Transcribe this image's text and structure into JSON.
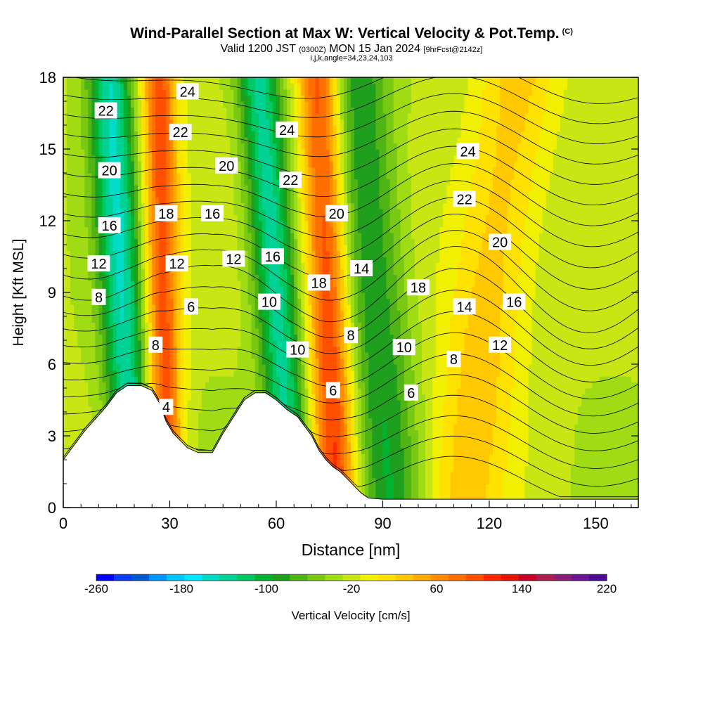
{
  "header": {
    "title": "Wind-Parallel Section at Max W: Vertical Velocity & Pot.Temp.",
    "copyright": "(C)",
    "valid_prefix": "Valid 1200 JST",
    "valid_utc": "(0300Z)",
    "valid_date": "MON 15 Jan 2024",
    "forecast": "[9hrFcst@2142z]",
    "indices": "i,j,k,angle=34,23,24,103"
  },
  "chart_data": {
    "type": "heatmap",
    "xlabel": "Distance [nm]",
    "ylabel": "Height [Kft MSL]",
    "xlim": [
      0,
      162
    ],
    "ylim": [
      0,
      18
    ],
    "x_ticks": [
      0,
      30,
      60,
      90,
      120,
      150
    ],
    "y_ticks": [
      0,
      3,
      6,
      9,
      12,
      15,
      18
    ],
    "colorbar": {
      "label": "Vertical Velocity [cm/s]",
      "min": -260,
      "max": 220,
      "step": 20,
      "tick_labels": [
        "-260",
        "-180",
        "-100",
        "-20",
        "60",
        "140",
        "220"
      ],
      "colors": [
        "#0000ff",
        "#0a3cf5",
        "#005ad2",
        "#0096ff",
        "#00c8ff",
        "#00e6ff",
        "#00dcc8",
        "#00d296",
        "#00c864",
        "#00b432",
        "#1ea01e",
        "#50b414",
        "#78c814",
        "#a0dc14",
        "#c8e614",
        "#f0f000",
        "#ffe100",
        "#ffc800",
        "#ffaa00",
        "#ff8c00",
        "#ff6e00",
        "#ff5000",
        "#ff2800",
        "#e61400",
        "#c80028",
        "#aa1e50",
        "#8c1e78",
        "#6e1496",
        "#500a96"
      ]
    },
    "terrain_height_kft": [
      [
        0,
        2
      ],
      [
        3,
        2.6
      ],
      [
        6,
        3.2
      ],
      [
        9,
        3.7
      ],
      [
        12,
        4.2
      ],
      [
        15,
        4.8
      ],
      [
        18,
        5.1
      ],
      [
        22,
        5.1
      ],
      [
        25,
        4.9
      ],
      [
        27,
        4.4
      ],
      [
        29,
        3.6
      ],
      [
        31,
        3.1
      ],
      [
        33,
        2.8
      ],
      [
        35,
        2.5
      ],
      [
        38,
        2.3
      ],
      [
        42,
        2.3
      ],
      [
        45,
        3.1
      ],
      [
        48,
        3.8
      ],
      [
        51,
        4.5
      ],
      [
        54,
        4.8
      ],
      [
        57,
        4.8
      ],
      [
        60,
        4.5
      ],
      [
        63,
        4.1
      ],
      [
        66,
        3.8
      ],
      [
        68,
        3.4
      ],
      [
        70,
        3.0
      ],
      [
        72,
        2.4
      ],
      [
        74,
        2.0
      ],
      [
        76,
        1.7
      ],
      [
        78,
        1.5
      ],
      [
        80,
        1.2
      ],
      [
        82,
        0.9
      ],
      [
        84,
        0.6
      ],
      [
        86,
        0.4
      ],
      [
        90,
        0.35
      ],
      [
        100,
        0.35
      ],
      [
        130,
        0.35
      ],
      [
        162,
        0.35
      ]
    ],
    "velocity_bands": [
      {
        "x_base": 20,
        "x_top": 13,
        "width": 6,
        "w": -140
      },
      {
        "x_base": 29,
        "x_top": 27,
        "width": 5,
        "w": 150
      },
      {
        "x_base": 65,
        "x_top": 55,
        "width": 6,
        "w": -130
      },
      {
        "x_base": 77,
        "x_top": 72,
        "width": 6,
        "w": 160
      },
      {
        "x_base": 92,
        "x_top": 83,
        "width": 9,
        "w": -80
      },
      {
        "x_base": 112,
        "x_top": 128,
        "width": 12,
        "w": 70
      }
    ],
    "contour_labels": [
      {
        "x": 12,
        "y": 16.6,
        "t": "22"
      },
      {
        "x": 13,
        "y": 14.1,
        "t": "20"
      },
      {
        "x": 13,
        "y": 11.8,
        "t": "16"
      },
      {
        "x": 10,
        "y": 10.2,
        "t": "12"
      },
      {
        "x": 10,
        "y": 8.8,
        "t": "8"
      },
      {
        "x": 26,
        "y": 6.8,
        "t": "8"
      },
      {
        "x": 29,
        "y": 4.2,
        "t": "4"
      },
      {
        "x": 35,
        "y": 17.4,
        "t": "24"
      },
      {
        "x": 33,
        "y": 15.7,
        "t": "22"
      },
      {
        "x": 29,
        "y": 12.3,
        "t": "18"
      },
      {
        "x": 32,
        "y": 10.2,
        "t": "12"
      },
      {
        "x": 36,
        "y": 8.4,
        "t": "6"
      },
      {
        "x": 46,
        "y": 14.3,
        "t": "20"
      },
      {
        "x": 42,
        "y": 12.3,
        "t": "16"
      },
      {
        "x": 48,
        "y": 10.4,
        "t": "12"
      },
      {
        "x": 63,
        "y": 15.8,
        "t": "24"
      },
      {
        "x": 64,
        "y": 13.7,
        "t": "22"
      },
      {
        "x": 59,
        "y": 10.5,
        "t": "16"
      },
      {
        "x": 58,
        "y": 8.6,
        "t": "10"
      },
      {
        "x": 66,
        "y": 6.6,
        "t": "10"
      },
      {
        "x": 77,
        "y": 12.3,
        "t": "20"
      },
      {
        "x": 72,
        "y": 9.4,
        "t": "18"
      },
      {
        "x": 84,
        "y": 10.0,
        "t": "14"
      },
      {
        "x": 81,
        "y": 7.2,
        "t": "8"
      },
      {
        "x": 76,
        "y": 4.9,
        "t": "6"
      },
      {
        "x": 100,
        "y": 9.2,
        "t": "18"
      },
      {
        "x": 96,
        "y": 6.7,
        "t": "10"
      },
      {
        "x": 98,
        "y": 4.8,
        "t": "6"
      },
      {
        "x": 114,
        "y": 14.9,
        "t": "24"
      },
      {
        "x": 113,
        "y": 12.9,
        "t": "22"
      },
      {
        "x": 123,
        "y": 11.1,
        "t": "20"
      },
      {
        "x": 113,
        "y": 8.4,
        "t": "14"
      },
      {
        "x": 127,
        "y": 8.6,
        "t": "16"
      },
      {
        "x": 123,
        "y": 6.8,
        "t": "12"
      },
      {
        "x": 110,
        "y": 6.2,
        "t": "8"
      }
    ]
  }
}
